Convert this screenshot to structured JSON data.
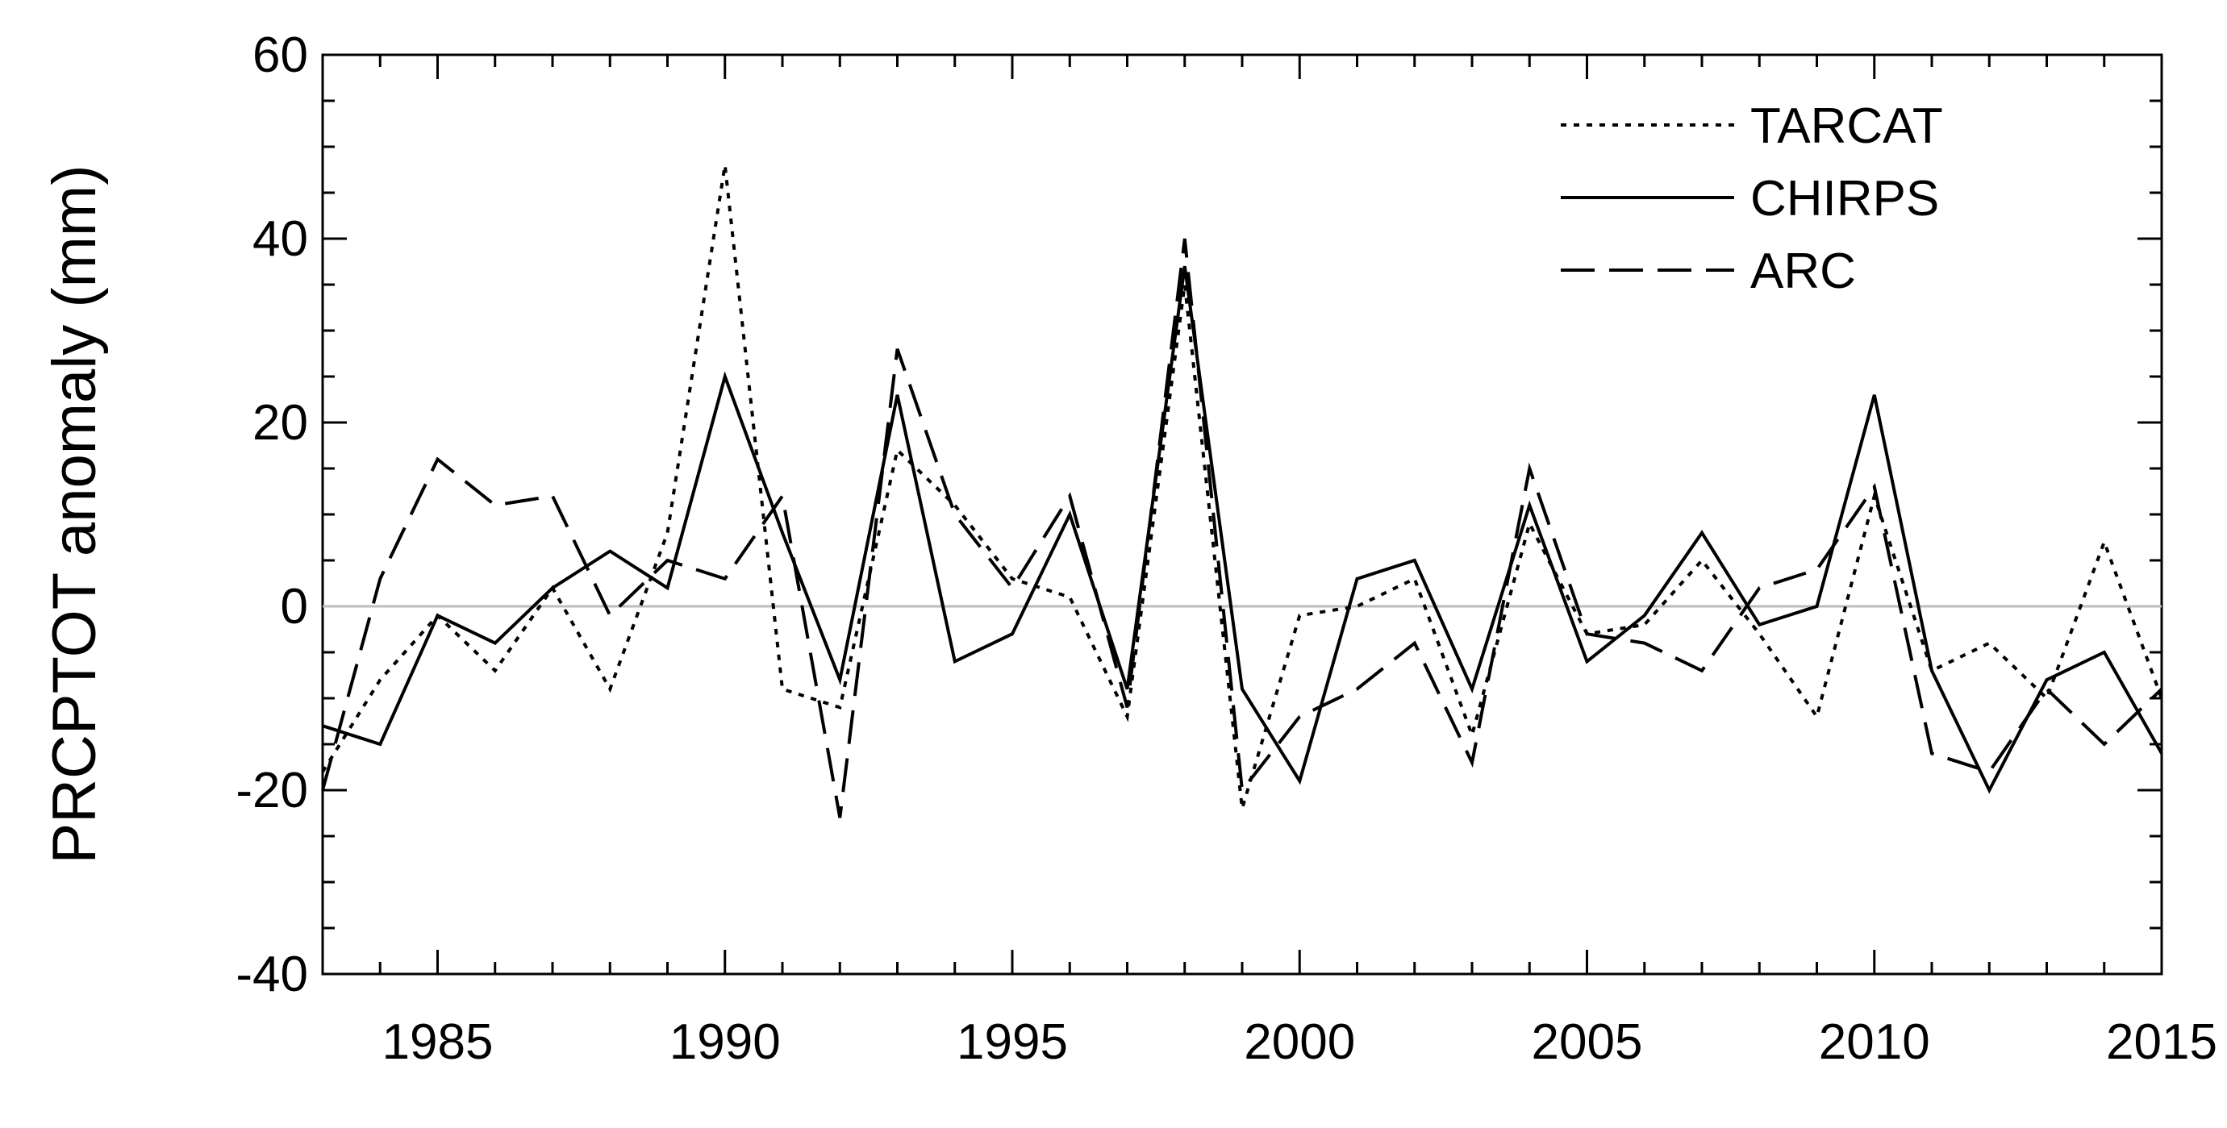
{
  "chart_data": {
    "type": "line",
    "title": "",
    "xlabel": "",
    "ylabel": "PRCPTOT anomaly (mm)",
    "xlim": [
      1983,
      2015
    ],
    "ylim": [
      -40,
      60
    ],
    "x_ticks": [
      1985,
      1990,
      1995,
      2000,
      2005,
      2010,
      2015
    ],
    "y_ticks": [
      -40,
      -20,
      0,
      20,
      40,
      60
    ],
    "x_tick_labels": [
      "1985",
      "1990",
      "1995",
      "2000",
      "2005",
      "2010",
      "2015"
    ],
    "y_tick_labels": [
      "-40",
      "-20",
      "0",
      "20",
      "40",
      "60"
    ],
    "zero_line": true,
    "grid": false,
    "legend_position": "top-right",
    "x": [
      1983,
      1984,
      1985,
      1986,
      1987,
      1988,
      1989,
      1990,
      1991,
      1992,
      1993,
      1994,
      1995,
      1996,
      1997,
      1998,
      1999,
      2000,
      2001,
      2002,
      2003,
      2004,
      2005,
      2006,
      2007,
      2008,
      2009,
      2010,
      2011,
      2012,
      2013,
      2014,
      2015
    ],
    "series": [
      {
        "name": "TARCAT",
        "style": "dotted",
        "values": [
          -18,
          -8,
          -1,
          -7,
          2,
          -9,
          8,
          48,
          -9,
          -11,
          17,
          11,
          3,
          1,
          -12,
          35,
          -22,
          -1,
          0,
          3,
          -14,
          9,
          -3,
          -2,
          5,
          -3,
          -12,
          12,
          -7,
          -4,
          -10,
          7,
          -10
        ]
      },
      {
        "name": "CHIRPS",
        "style": "solid",
        "values": [
          -13,
          -15,
          -1,
          -4,
          2,
          6,
          2,
          25,
          8,
          -8,
          23,
          -6,
          -3,
          10,
          -9,
          37,
          -9,
          -19,
          3,
          5,
          -9,
          11,
          -6,
          -1,
          8,
          -2,
          0,
          23,
          -7,
          -20,
          -8,
          -5,
          -16
        ]
      },
      {
        "name": "ARC",
        "style": "dashed",
        "values": [
          -20,
          3,
          16,
          11,
          12,
          -1,
          5,
          3,
          12,
          -23,
          28,
          10,
          2,
          12,
          -11,
          40,
          -20,
          -12,
          -9,
          -4,
          -17,
          15,
          -3,
          -4,
          -7,
          2,
          4,
          13,
          -16,
          -18,
          -9,
          -15,
          -9
        ]
      }
    ]
  }
}
